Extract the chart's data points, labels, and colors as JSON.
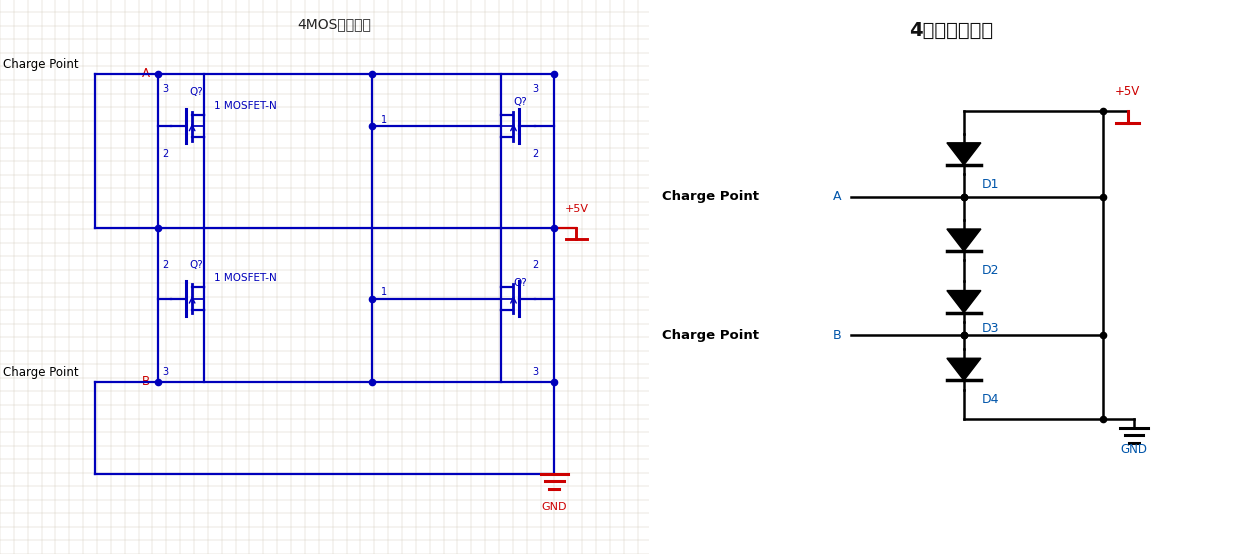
{
  "fig_width": 12.6,
  "fig_height": 5.54,
  "left_bg": "#f0ece0",
  "left_title": "4MOS管的磁充",
  "right_title": "4二极管的磁充",
  "lc": "#0000bb",
  "rc": "#cc0000",
  "black": "#000000",
  "dblue": "#0055aa",
  "grid_color": "#d0c8b8",
  "charge_pt": "Charge Point",
  "vcc": "+5V",
  "gnd": "GND",
  "label_A": "A",
  "label_B": "B",
  "d_labels": [
    "D1",
    "D2",
    "D3",
    "D4"
  ],
  "q_label": "Q?",
  "mosfet_label": "MOSFET-N"
}
